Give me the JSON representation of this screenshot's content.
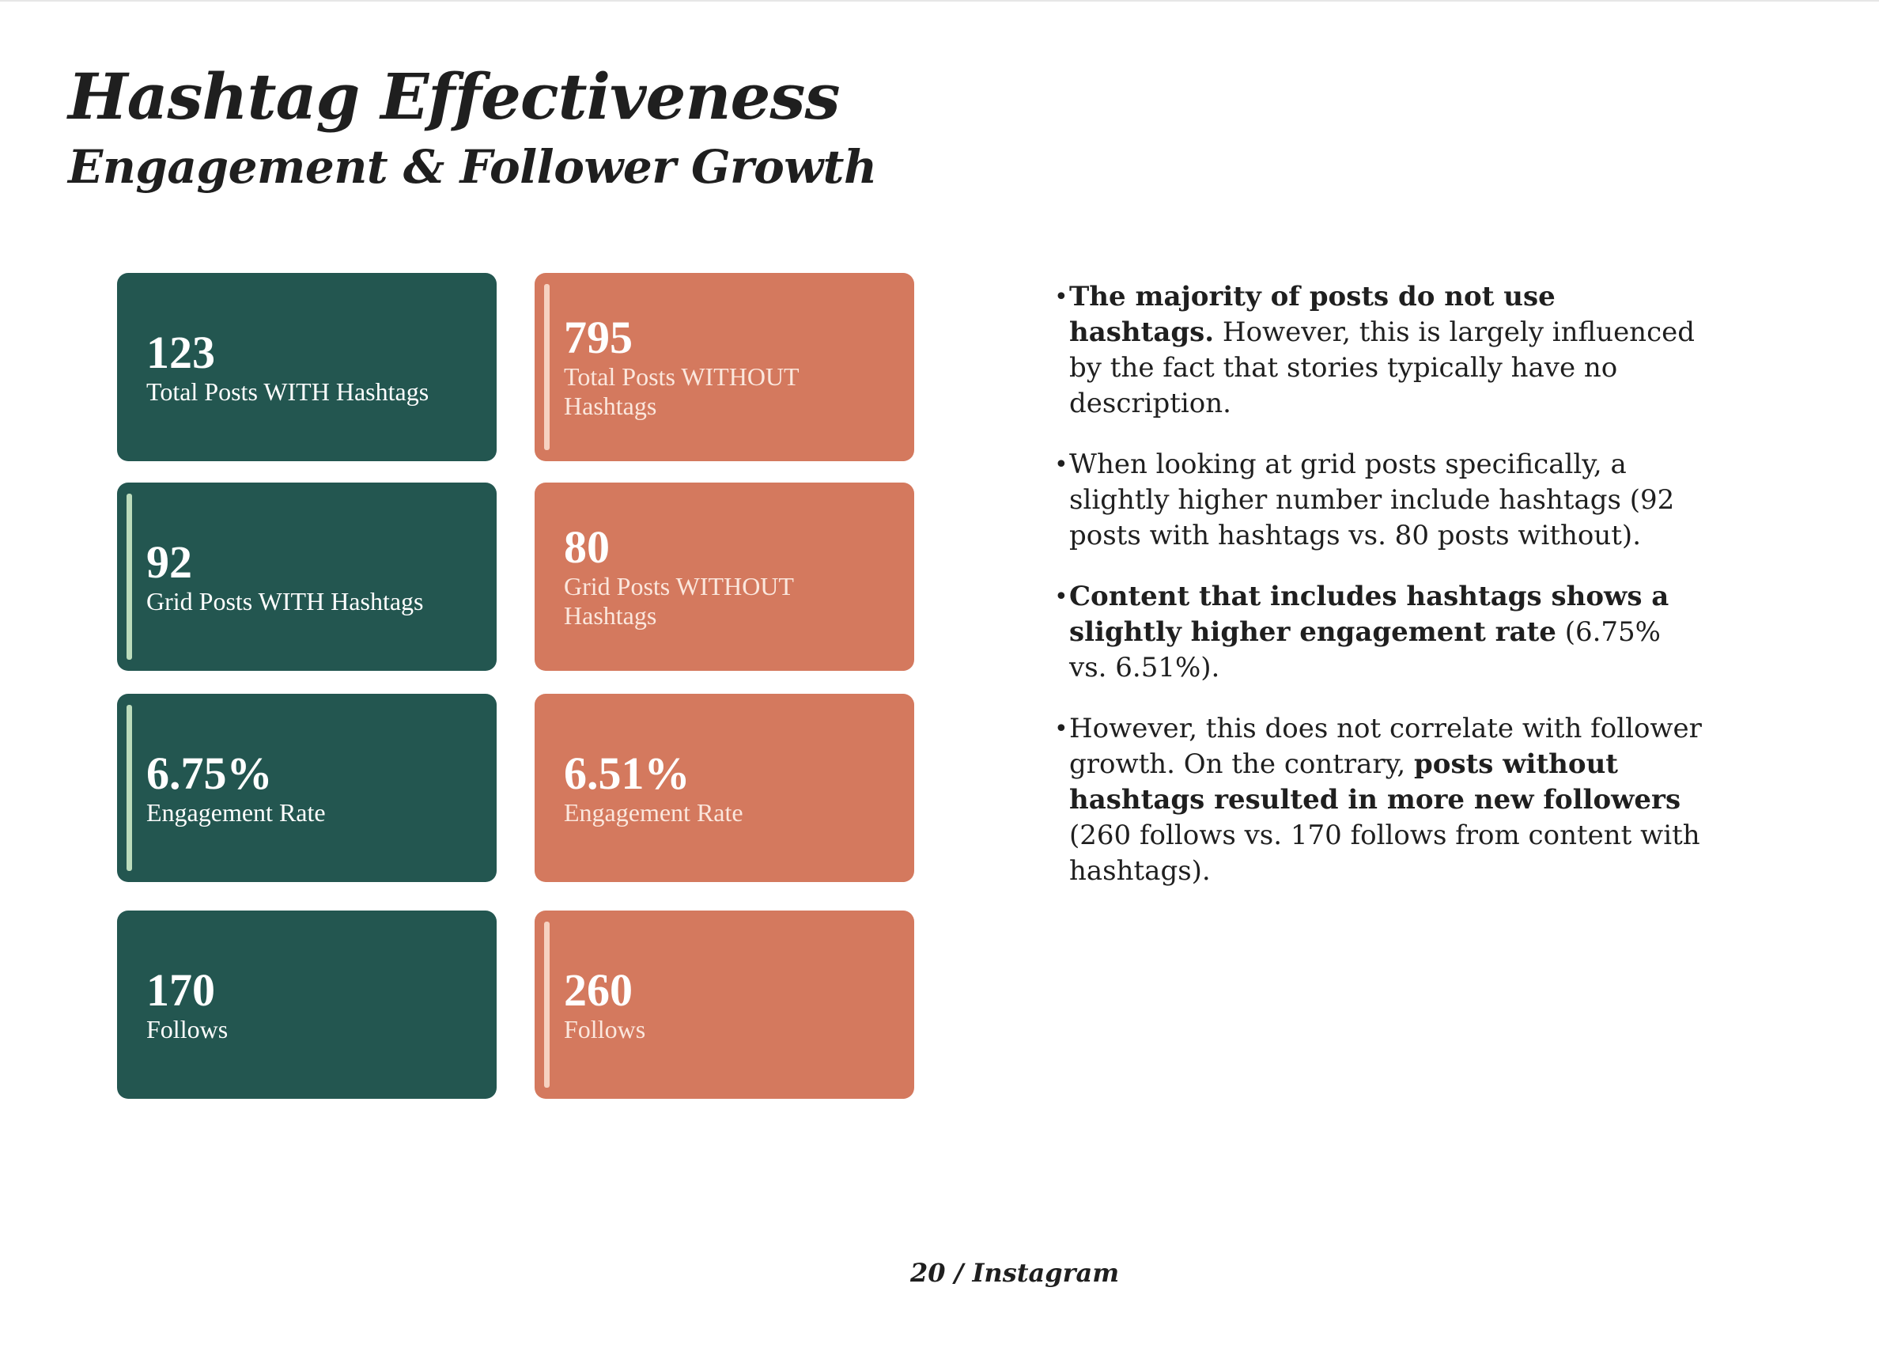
{
  "page": {
    "title": "Hashtag Effectiveness",
    "subtitle": "Engagement & Follower Growth",
    "footer": "20 / Instagram"
  },
  "colors": {
    "with_hashtags": "#235650",
    "without_hashtags": "#d4795e"
  },
  "cards": {
    "total_with": {
      "value": "123",
      "label": "Total Posts WITH Hashtags"
    },
    "total_without": {
      "value": "795",
      "label": "Total Posts WITHOUT Hashtags"
    },
    "grid_with": {
      "value": "92",
      "label": "Grid Posts WITH Hashtags"
    },
    "grid_without": {
      "value": "80",
      "label": "Grid Posts WITHOUT Hashtags"
    },
    "engagement_with": {
      "value": "6.75%",
      "label": "Engagement Rate"
    },
    "engagement_without": {
      "value": "6.51%",
      "label": "Engagement Rate"
    },
    "follows_with": {
      "value": "170",
      "label": "Follows"
    },
    "follows_without": {
      "value": "260",
      "label": "Follows"
    }
  },
  "bullets": {
    "bullet_char": "•",
    "b1": {
      "bold": "The majority of posts do not use hashtags.",
      "text": " However, this is largely influenced by the fact that stories typically have no description."
    },
    "b2": {
      "text": "When looking at grid posts specifically, a slightly higher number include hashtags (92 posts with hashtags vs. 80 posts without)."
    },
    "b3": {
      "bold": "Content that includes hashtags shows a slightly higher engagement rate",
      "text": " (6.75% vs. 6.51%)."
    },
    "b4": {
      "text_before": "However, this does not correlate with follower growth. On the contrary, ",
      "bold": "posts without hashtags resulted in more new followers",
      "text_after": " (260 follows vs. 170 follows from content with hashtags)."
    }
  }
}
